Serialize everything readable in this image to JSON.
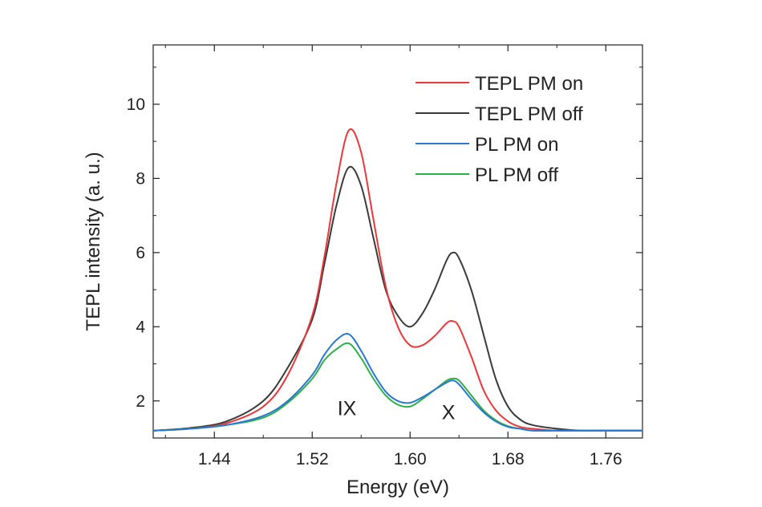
{
  "chart_data": {
    "type": "line",
    "title": "",
    "xlabel": "Energy (eV)",
    "ylabel": "TEPL intensity (a. u.)",
    "xlim": [
      1.39,
      1.79
    ],
    "ylim": [
      1.0,
      11.6
    ],
    "xticks": [
      1.44,
      1.52,
      1.6,
      1.68,
      1.76
    ],
    "xtick_labels": [
      "1.44",
      "1.52",
      "1.60",
      "1.68",
      "1.76"
    ],
    "yticks": [
      2,
      4,
      6,
      8,
      10
    ],
    "ytick_labels": [
      "2",
      "4",
      "6",
      "8",
      "10"
    ],
    "grid": false,
    "legend_position": "top-right",
    "annotations": [
      {
        "text": "IX",
        "x": 1.551,
        "y": 1.7
      },
      {
        "text": "X",
        "x": 1.634,
        "y": 1.6
      }
    ],
    "x": [
      1.39,
      1.42,
      1.45,
      1.48,
      1.5,
      1.52,
      1.53,
      1.54,
      1.55,
      1.56,
      1.57,
      1.58,
      1.59,
      1.6,
      1.61,
      1.62,
      1.63,
      1.635,
      1.64,
      1.65,
      1.66,
      1.67,
      1.68,
      1.69,
      1.7,
      1.72,
      1.74,
      1.76,
      1.79
    ],
    "series": [
      {
        "name": "TEPL PM on",
        "color": "#e8383c",
        "values": [
          1.2,
          1.25,
          1.4,
          1.85,
          2.7,
          4.3,
          5.9,
          7.9,
          9.3,
          8.7,
          6.9,
          5.1,
          4.0,
          3.5,
          3.5,
          3.75,
          4.1,
          4.15,
          4.0,
          3.2,
          2.3,
          1.75,
          1.45,
          1.3,
          1.25,
          1.2,
          1.2,
          1.2,
          1.2
        ]
      },
      {
        "name": "TEPL PM off",
        "color": "#3a3a3a",
        "values": [
          1.2,
          1.27,
          1.45,
          2.0,
          2.9,
          4.2,
          5.7,
          7.3,
          8.3,
          7.8,
          6.4,
          5.0,
          4.3,
          4.0,
          4.35,
          5.0,
          5.8,
          6.0,
          5.85,
          5.0,
          3.8,
          2.6,
          1.85,
          1.5,
          1.35,
          1.25,
          1.2,
          1.2,
          1.2
        ]
      },
      {
        "name": "PL PM on",
        "color": "#2a77d0",
        "values": [
          1.2,
          1.25,
          1.35,
          1.6,
          2.0,
          2.7,
          3.25,
          3.65,
          3.8,
          3.35,
          2.75,
          2.25,
          2.0,
          1.95,
          2.1,
          2.3,
          2.5,
          2.55,
          2.45,
          2.05,
          1.7,
          1.45,
          1.3,
          1.25,
          1.2,
          1.2,
          1.2,
          1.2,
          1.2
        ]
      },
      {
        "name": "PL PM off",
        "color": "#2fae48",
        "values": [
          1.2,
          1.25,
          1.35,
          1.55,
          1.95,
          2.6,
          3.1,
          3.4,
          3.55,
          3.15,
          2.6,
          2.15,
          1.9,
          1.85,
          2.05,
          2.3,
          2.55,
          2.6,
          2.55,
          2.15,
          1.75,
          1.48,
          1.32,
          1.25,
          1.2,
          1.2,
          1.2,
          1.2,
          1.2
        ]
      }
    ]
  }
}
